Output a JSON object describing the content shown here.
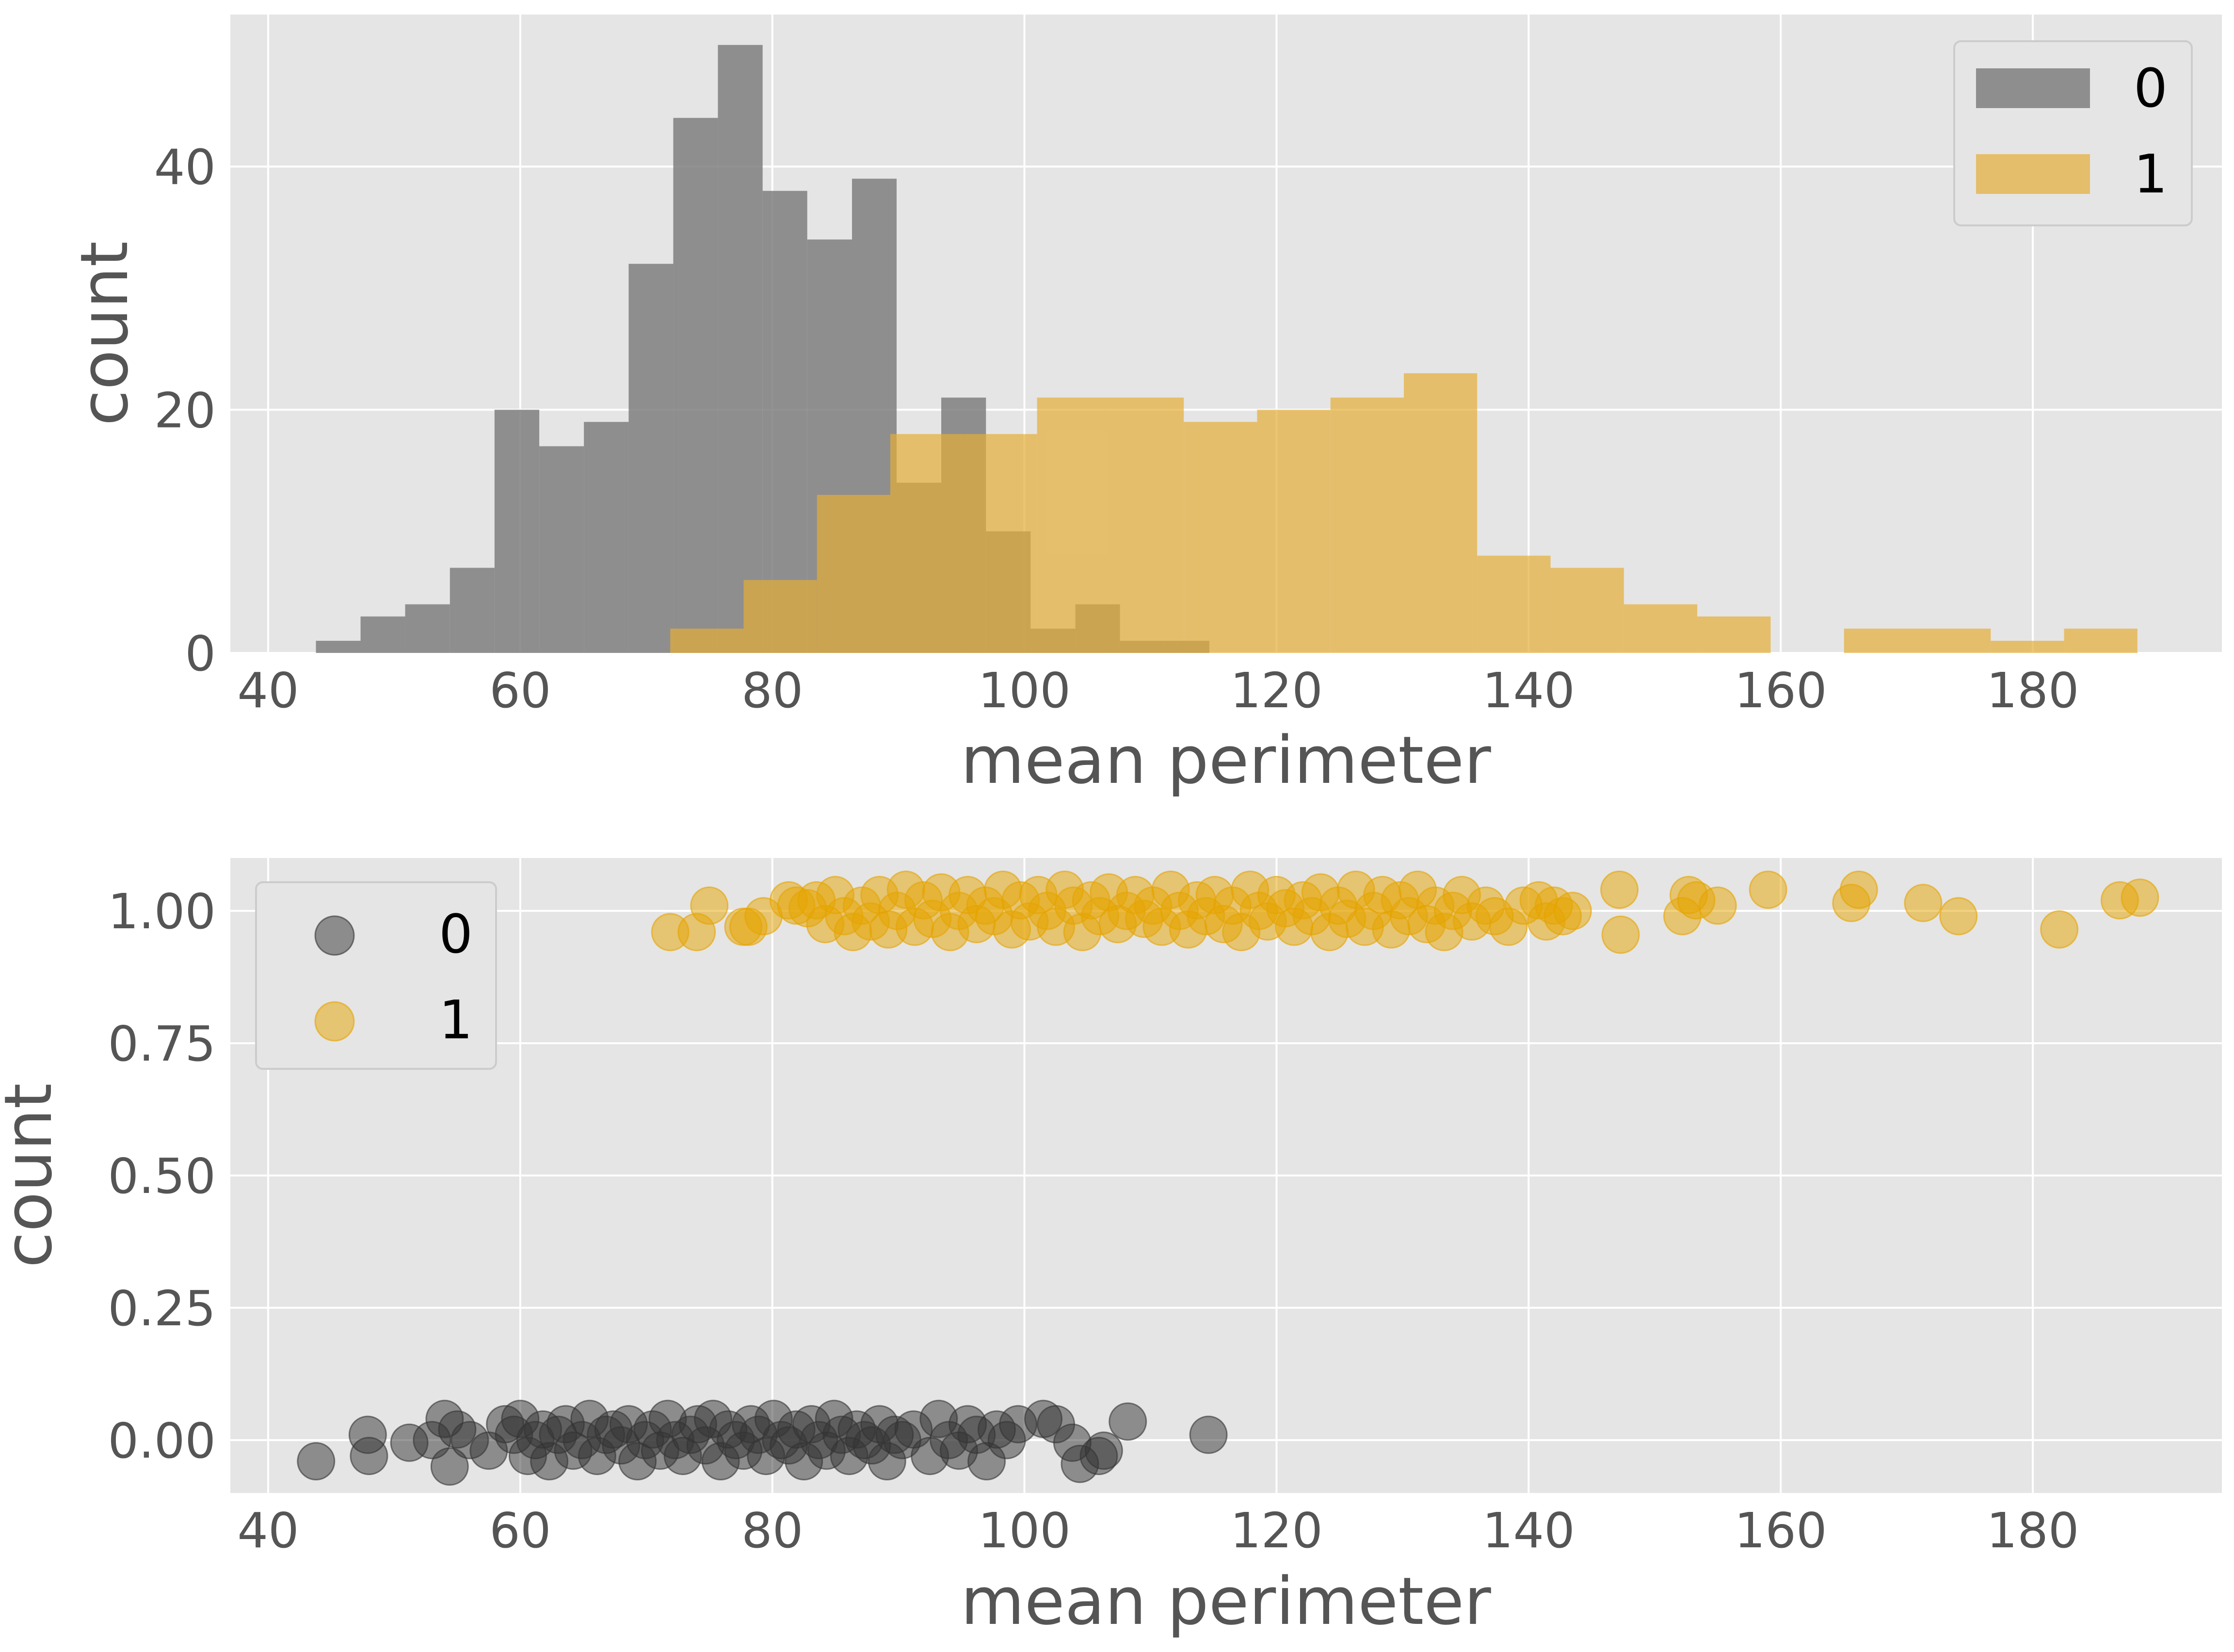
{
  "colors": {
    "class_0": "#7f7f7f",
    "class_1": "#e5ae38",
    "scatter_0": "#333333",
    "scatter_1": "#e5a300",
    "panel_bg": "#e5e5e5",
    "grid": "#ffffff"
  },
  "chart_data": [
    {
      "type": "bar",
      "subtype": "overlaid-histogram",
      "xlabel": "mean perimeter",
      "ylabel": "count",
      "xlim": [
        37,
        195
      ],
      "ylim": [
        0,
        52.5
      ],
      "xticks": [
        40,
        60,
        80,
        100,
        120,
        140,
        160,
        180
      ],
      "yticks": [
        0,
        20,
        40
      ],
      "grid": true,
      "legend_position": "top-right",
      "legend": [
        "0",
        "1"
      ],
      "series": [
        {
          "name": "0",
          "bin_edges": [
            43.79,
            47.33,
            50.87,
            54.42,
            57.96,
            61.51,
            65.05,
            68.6,
            72.14,
            75.68,
            79.23,
            82.77,
            86.32,
            89.86,
            93.4,
            96.95,
            100.49,
            104.04,
            107.58,
            111.13,
            114.67
          ],
          "counts": [
            1,
            3,
            4,
            7,
            20,
            17,
            19,
            32,
            44,
            50,
            38,
            34,
            39,
            14,
            21,
            10,
            2,
            4,
            1,
            1
          ]
        },
        {
          "name": "1",
          "bin_edges": [
            71.9,
            77.72,
            83.54,
            89.36,
            95.18,
            101.0,
            106.82,
            112.64,
            118.46,
            124.28,
            130.1,
            135.92,
            141.74,
            147.56,
            153.38,
            159.2,
            165.02,
            170.84,
            176.66,
            182.48,
            188.3
          ],
          "counts": [
            2,
            6,
            13,
            18,
            18,
            21,
            21,
            19,
            20,
            21,
            23,
            8,
            7,
            4,
            3,
            0,
            2,
            2,
            1,
            2
          ]
        }
      ]
    },
    {
      "type": "scatter",
      "xlabel": "mean perimeter",
      "ylabel": "count",
      "xlim": [
        37,
        195
      ],
      "ylim": [
        -0.1,
        1.1
      ],
      "xticks": [
        40,
        60,
        80,
        100,
        120,
        140,
        160,
        180
      ],
      "yticks": [
        "0.00",
        "0.25",
        "0.50",
        "0.75",
        "1.00"
      ],
      "grid": true,
      "legend_position": "top-left",
      "legend": [
        "0",
        "1"
      ],
      "series": [
        {
          "name": "0",
          "points": [
            [
              43.8,
              -0.04
            ],
            [
              47.9,
              0.01
            ],
            [
              48.0,
              -0.03
            ],
            [
              51.2,
              -0.005
            ],
            [
              53.0,
              0.0
            ],
            [
              54.0,
              0.04
            ],
            [
              54.4,
              -0.05
            ],
            [
              55.0,
              0.02
            ],
            [
              56.0,
              0.0
            ],
            [
              57.5,
              -0.02
            ],
            [
              58.8,
              0.03
            ],
            [
              59.5,
              0.01
            ],
            [
              60.0,
              0.04
            ],
            [
              60.6,
              -0.03
            ],
            [
              61.2,
              0.0
            ],
            [
              61.8,
              0.02
            ],
            [
              62.3,
              -0.04
            ],
            [
              63.0,
              0.01
            ],
            [
              63.6,
              0.03
            ],
            [
              64.2,
              -0.02
            ],
            [
              64.9,
              0.0
            ],
            [
              65.5,
              0.04
            ],
            [
              66.1,
              -0.03
            ],
            [
              66.8,
              0.01
            ],
            [
              67.4,
              0.02
            ],
            [
              68.0,
              -0.01
            ],
            [
              68.6,
              0.03
            ],
            [
              69.3,
              -0.04
            ],
            [
              69.9,
              0.0
            ],
            [
              70.5,
              0.02
            ],
            [
              71.1,
              -0.02
            ],
            [
              71.7,
              0.04
            ],
            [
              72.3,
              0.0
            ],
            [
              72.9,
              -0.03
            ],
            [
              73.5,
              0.01
            ],
            [
              74.1,
              0.03
            ],
            [
              74.7,
              -0.01
            ],
            [
              75.3,
              0.04
            ],
            [
              75.9,
              -0.04
            ],
            [
              76.5,
              0.02
            ],
            [
              77.1,
              0.0
            ],
            [
              77.7,
              -0.02
            ],
            [
              78.3,
              0.03
            ],
            [
              78.9,
              0.01
            ],
            [
              79.5,
              -0.03
            ],
            [
              80.1,
              0.04
            ],
            [
              80.7,
              0.0
            ],
            [
              81.3,
              -0.01
            ],
            [
              81.9,
              0.02
            ],
            [
              82.5,
              -0.04
            ],
            [
              83.1,
              0.03
            ],
            [
              83.7,
              0.0
            ],
            [
              84.3,
              -0.02
            ],
            [
              84.9,
              0.04
            ],
            [
              85.5,
              0.01
            ],
            [
              86.1,
              -0.03
            ],
            [
              86.7,
              0.02
            ],
            [
              87.3,
              0.0
            ],
            [
              87.9,
              -0.01
            ],
            [
              88.5,
              0.03
            ],
            [
              89.1,
              -0.04
            ],
            [
              89.7,
              0.01
            ],
            [
              90.3,
              0.0
            ],
            [
              91.2,
              0.02
            ],
            [
              92.5,
              -0.03
            ],
            [
              93.2,
              0.04
            ],
            [
              94.0,
              0.0
            ],
            [
              94.8,
              -0.02
            ],
            [
              95.5,
              0.03
            ],
            [
              96.2,
              0.01
            ],
            [
              97.0,
              -0.04
            ],
            [
              97.8,
              0.02
            ],
            [
              98.6,
              0.0
            ],
            [
              99.5,
              0.03
            ],
            [
              101.5,
              0.04
            ],
            [
              102.5,
              0.03
            ],
            [
              103.8,
              -0.005
            ],
            [
              104.4,
              -0.045
            ],
            [
              105.9,
              -0.03
            ],
            [
              106.3,
              -0.02
            ],
            [
              108.2,
              0.035
            ],
            [
              114.6,
              0.01
            ]
          ]
        },
        {
          "name": "1",
          "points": [
            [
              71.9,
              0.96
            ],
            [
              74.0,
              0.96
            ],
            [
              75.0,
              1.01
            ],
            [
              77.7,
              0.97
            ],
            [
              78.1,
              0.97
            ],
            [
              79.3,
              0.99
            ],
            [
              81.3,
              1.02
            ],
            [
              81.9,
              1.01
            ],
            [
              82.8,
              1.005
            ],
            [
              83.5,
              1.02
            ],
            [
              84.2,
              0.975
            ],
            [
              85.0,
              1.03
            ],
            [
              85.7,
              0.99
            ],
            [
              86.4,
              0.96
            ],
            [
              87.1,
              1.01
            ],
            [
              87.8,
              0.98
            ],
            [
              88.5,
              1.03
            ],
            [
              89.2,
              0.965
            ],
            [
              89.9,
              1.0
            ],
            [
              90.6,
              1.04
            ],
            [
              91.3,
              0.97
            ],
            [
              92.0,
              1.02
            ],
            [
              92.7,
              0.985
            ],
            [
              93.4,
              1.035
            ],
            [
              94.1,
              0.96
            ],
            [
              94.8,
              1.0
            ],
            [
              95.5,
              1.03
            ],
            [
              96.2,
              0.975
            ],
            [
              96.9,
              1.01
            ],
            [
              97.6,
              0.99
            ],
            [
              98.3,
              1.04
            ],
            [
              99.0,
              0.965
            ],
            [
              99.7,
              1.02
            ],
            [
              100.4,
              0.98
            ],
            [
              101.1,
              1.03
            ],
            [
              101.8,
              1.0
            ],
            [
              102.5,
              0.97
            ],
            [
              103.2,
              1.04
            ],
            [
              103.9,
              1.01
            ],
            [
              104.6,
              0.96
            ],
            [
              105.3,
              1.02
            ],
            [
              106.0,
              0.99
            ],
            [
              106.7,
              1.035
            ],
            [
              107.4,
              0.975
            ],
            [
              108.1,
              1.0
            ],
            [
              108.8,
              1.03
            ],
            [
              109.5,
              0.985
            ],
            [
              110.2,
              1.01
            ],
            [
              110.9,
              0.97
            ],
            [
              111.6,
              1.04
            ],
            [
              112.3,
              1.0
            ],
            [
              113.0,
              0.965
            ],
            [
              113.7,
              1.02
            ],
            [
              114.4,
              0.99
            ],
            [
              115.1,
              1.03
            ],
            [
              115.8,
              0.975
            ],
            [
              116.5,
              1.01
            ],
            [
              117.2,
              0.96
            ],
            [
              117.9,
              1.04
            ],
            [
              118.6,
              1.0
            ],
            [
              119.3,
              0.98
            ],
            [
              120.0,
              1.03
            ],
            [
              120.7,
              1.005
            ],
            [
              121.4,
              0.97
            ],
            [
              122.1,
              1.02
            ],
            [
              122.8,
              0.99
            ],
            [
              123.5,
              1.035
            ],
            [
              124.2,
              0.96
            ],
            [
              124.9,
              1.01
            ],
            [
              125.6,
              0.985
            ],
            [
              126.3,
              1.04
            ],
            [
              127.0,
              0.97
            ],
            [
              127.7,
              1.0
            ],
            [
              128.4,
              1.03
            ],
            [
              129.1,
              0.965
            ],
            [
              129.8,
              1.02
            ],
            [
              130.5,
              0.99
            ],
            [
              131.2,
              1.04
            ],
            [
              131.9,
              0.975
            ],
            [
              132.6,
              1.01
            ],
            [
              133.3,
              0.96
            ],
            [
              134.0,
              1.0
            ],
            [
              134.7,
              1.03
            ],
            [
              135.5,
              0.98
            ],
            [
              136.6,
              1.01
            ],
            [
              137.3,
              0.99
            ],
            [
              138.4,
              0.97
            ],
            [
              139.6,
              1.01
            ],
            [
              140.8,
              1.02
            ],
            [
              141.4,
              0.98
            ],
            [
              142.0,
              1.01
            ],
            [
              142.7,
              0.99
            ],
            [
              143.5,
              1.0
            ],
            [
              147.2,
              1.04
            ],
            [
              147.3,
              0.955
            ],
            [
              152.2,
              0.99
            ],
            [
              152.7,
              1.03
            ],
            [
              153.3,
              1.02
            ],
            [
              155.0,
              1.01
            ],
            [
              159.0,
              1.04
            ],
            [
              165.6,
              1.015
            ],
            [
              166.2,
              1.04
            ],
            [
              171.3,
              1.015
            ],
            [
              174.1,
              0.99
            ],
            [
              182.1,
              0.965
            ],
            [
              186.9,
              1.02
            ],
            [
              188.5,
              1.025
            ]
          ]
        }
      ]
    }
  ]
}
